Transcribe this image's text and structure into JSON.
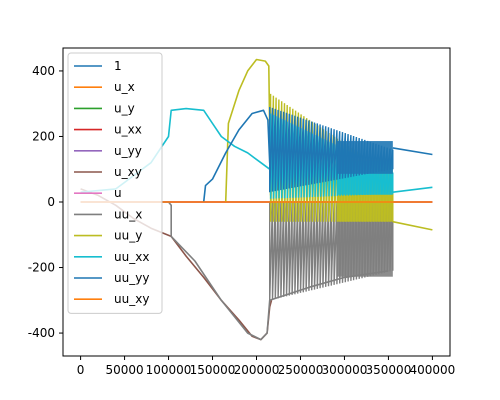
{
  "chart_data": {
    "type": "line",
    "title": "",
    "xlabel": "",
    "ylabel": "",
    "xlim": [
      -20000,
      420000
    ],
    "ylim": [
      -470,
      470
    ],
    "x_ticks": [
      0,
      50000,
      100000,
      150000,
      200000,
      250000,
      300000,
      350000,
      400000
    ],
    "y_ticks": [
      -400,
      -200,
      0,
      200,
      400
    ],
    "grid": false,
    "legend": {
      "position": "top-left"
    },
    "series": [
      {
        "name": "1",
        "color": "#1f77b4",
        "points": [
          [
            0,
            0
          ],
          [
            400000,
            0
          ]
        ]
      },
      {
        "name": "u_x",
        "color": "#ff7f0e",
        "points": [
          [
            0,
            0
          ],
          [
            400000,
            0
          ]
        ]
      },
      {
        "name": "u_y",
        "color": "#2ca02c",
        "points": [
          [
            0,
            0
          ],
          [
            400000,
            0
          ]
        ]
      },
      {
        "name": "u_xx",
        "color": "#d62728",
        "points": [
          [
            0,
            0
          ],
          [
            400000,
            0
          ]
        ]
      },
      {
        "name": "u_yy",
        "color": "#9467bd",
        "points": [
          [
            0,
            0
          ],
          [
            400000,
            0
          ]
        ]
      },
      {
        "name": "u_xy",
        "color": "#8c564b",
        "points": [
          [
            0,
            40
          ],
          [
            20000,
            20
          ],
          [
            40000,
            -10
          ],
          [
            60000,
            -50
          ],
          [
            80000,
            -80
          ],
          [
            103000,
            -105
          ],
          [
            120000,
            -165
          ],
          [
            140000,
            -230
          ],
          [
            160000,
            -300
          ],
          [
            180000,
            -360
          ],
          [
            195000,
            -410
          ],
          [
            205000,
            -420
          ],
          [
            212000,
            -400
          ],
          [
            215000,
            -320
          ],
          [
            217000,
            -300
          ]
        ]
      },
      {
        "name": "u",
        "color": "#e377c2",
        "points": [
          [
            0,
            0
          ],
          [
            400000,
            0
          ]
        ]
      },
      {
        "name": "uu_x",
        "color": "#7f7f7f",
        "points": [
          [
            0,
            0
          ],
          [
            100000,
            0
          ],
          [
            103000,
            -10
          ],
          [
            103000,
            -105
          ],
          [
            130000,
            -180
          ],
          [
            160000,
            -300
          ],
          [
            190000,
            -400
          ],
          [
            205000,
            -420
          ],
          [
            212000,
            -400
          ],
          [
            215000,
            -300
          ],
          [
            260000,
            -260
          ],
          [
            300000,
            -230
          ],
          [
            350000,
            -210
          ]
        ],
        "band": {
          "x_start": 215000,
          "x_end": 355000,
          "upper": [
            0,
            0
          ],
          "lower": [
            -300,
            -210
          ]
        }
      },
      {
        "name": "uu_y",
        "color": "#bcbd22",
        "points": [
          [
            165000,
            0
          ],
          [
            168000,
            240
          ],
          [
            180000,
            340
          ],
          [
            190000,
            400
          ],
          [
            200000,
            435
          ],
          [
            210000,
            430
          ],
          [
            214000,
            415
          ],
          [
            216000,
            20
          ]
        ],
        "band": {
          "x_start": 216000,
          "x_end": 355000,
          "upper": [
            330,
            80
          ],
          "lower": [
            -60,
            -60
          ]
        },
        "tail": [
          [
            355000,
            -60
          ],
          [
            400000,
            -85
          ]
        ]
      },
      {
        "name": "uu_xx",
        "color": "#17becf",
        "points": [
          [
            0,
            30
          ],
          [
            40000,
            40
          ],
          [
            80000,
            120
          ],
          [
            100000,
            200
          ],
          [
            103000,
            280
          ],
          [
            120000,
            285
          ],
          [
            140000,
            280
          ],
          [
            150000,
            240
          ],
          [
            160000,
            200
          ],
          [
            175000,
            170
          ],
          [
            190000,
            150
          ],
          [
            205000,
            120
          ],
          [
            215000,
            100
          ]
        ],
        "band": {
          "x_start": 216000,
          "x_end": 355000,
          "upper": [
            270,
            90
          ],
          "lower": [
            10,
            25
          ]
        },
        "tail": [
          [
            355000,
            30
          ],
          [
            400000,
            45
          ]
        ]
      },
      {
        "name": "uu_yy",
        "color": "#1f77b4",
        "points": [
          [
            140000,
            0
          ],
          [
            142000,
            50
          ],
          [
            150000,
            70
          ],
          [
            165000,
            150
          ],
          [
            180000,
            220
          ],
          [
            195000,
            270
          ],
          [
            208000,
            280
          ],
          [
            213000,
            250
          ],
          [
            215000,
            120
          ]
        ],
        "band": {
          "x_start": 215000,
          "x_end": 355000,
          "upper": [
            290,
            160
          ],
          "lower": [
            30,
            100
          ]
        },
        "tail": [
          [
            355000,
            165
          ],
          [
            400000,
            145
          ]
        ]
      },
      {
        "name": "uu_xy",
        "color": "#ff7f0e",
        "points": [
          [
            0,
            0
          ],
          [
            400000,
            0
          ]
        ]
      }
    ]
  }
}
